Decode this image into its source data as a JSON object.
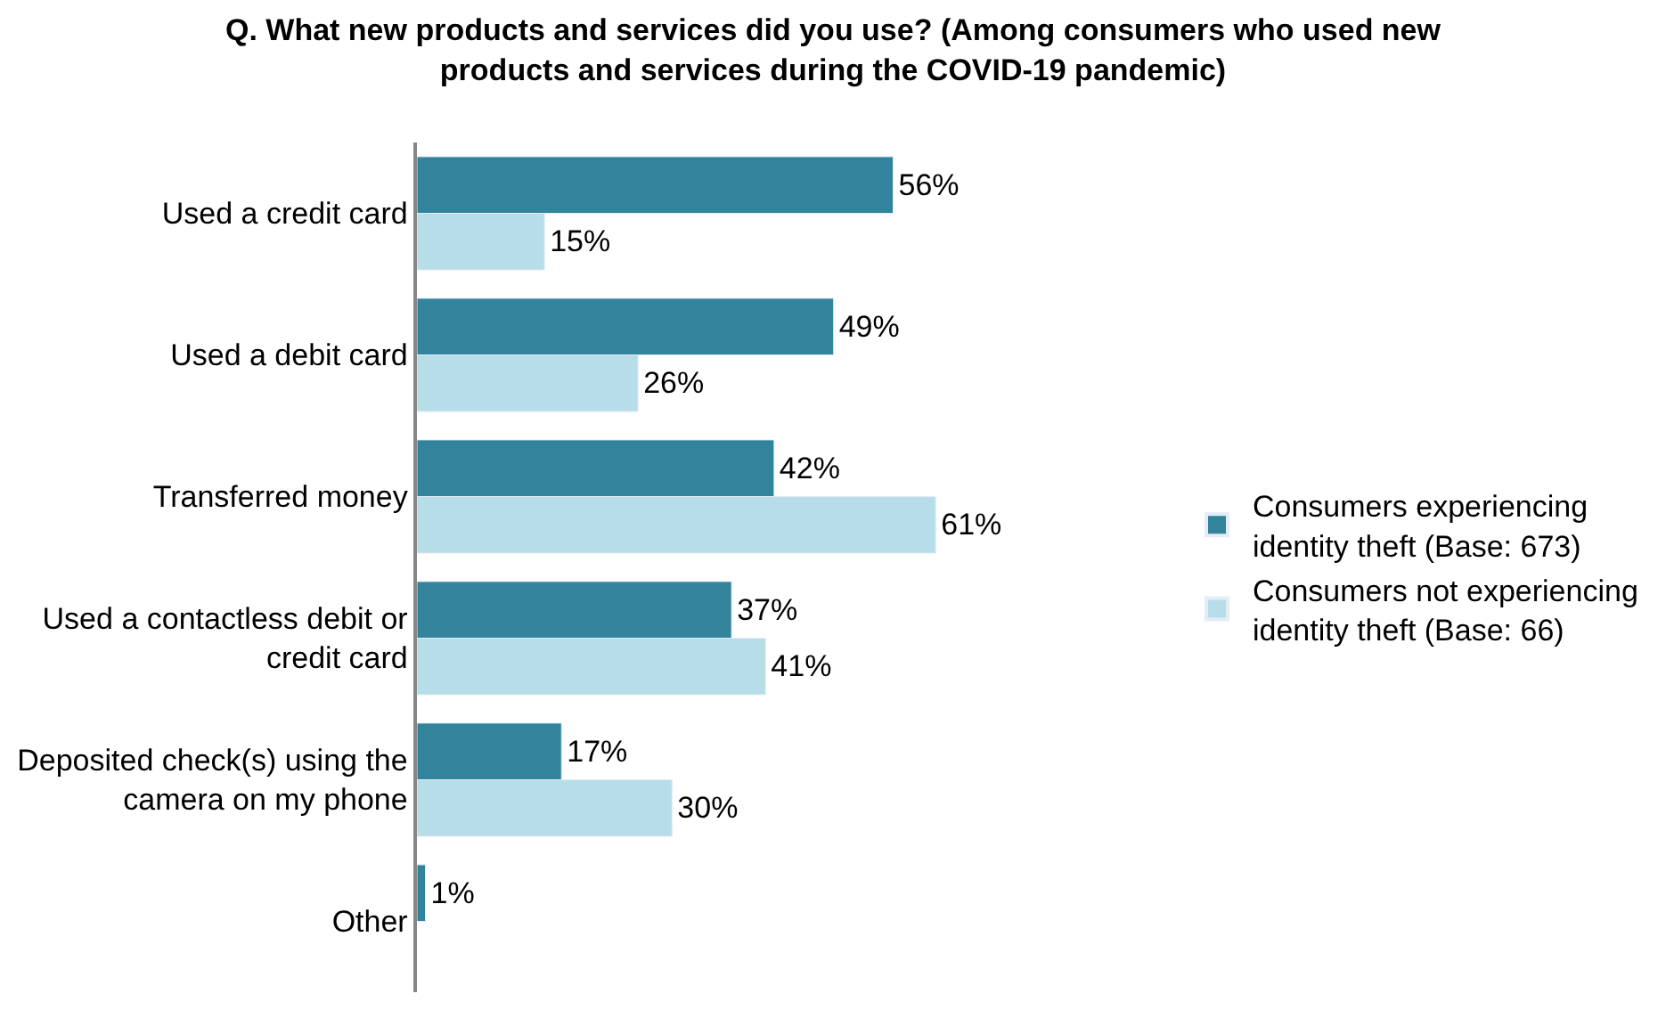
{
  "chart_data": {
    "type": "bar",
    "orientation": "horizontal",
    "title": "Q. What new products and services did you use? (Among consumers who used new products and services during the COVID-19 pandemic)",
    "categories": [
      "Used a credit card",
      "Used a debit card",
      "Transferred money",
      "Used a contactless debit or credit card",
      "Deposited check(s) using the camera on my phone",
      "Other"
    ],
    "series": [
      {
        "name": "Consumers experiencing identity theft (Base: 673)",
        "color": "#31849b",
        "values": [
          56,
          49,
          42,
          37,
          17,
          1
        ],
        "value_labels": [
          "56%",
          "49%",
          "42%",
          "37%",
          "17%",
          "1%"
        ]
      },
      {
        "name": "Consumers not experiencing identity theft (Base: 66)",
        "color": "#b7dee8",
        "values": [
          15,
          26,
          61,
          41,
          30,
          null
        ],
        "value_labels": [
          "15%",
          "26%",
          "61%",
          "41%",
          "30%",
          null
        ]
      }
    ],
    "legend": "right"
  }
}
